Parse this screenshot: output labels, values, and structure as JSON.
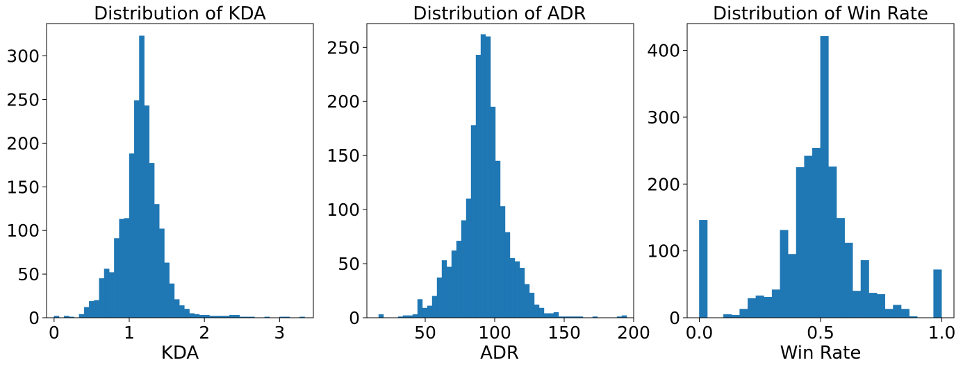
{
  "colors": {
    "bar": "#1f77b4",
    "background": "#ffffff",
    "axes": "#000000"
  },
  "chart_data": [
    {
      "type": "bar",
      "title": "Distribution of KDA",
      "xlabel": "KDA",
      "ylabel": "",
      "xlim": [
        -0.1,
        3.45
      ],
      "ylim": [
        0,
        337
      ],
      "grid": false,
      "xticks": [
        0,
        1,
        2,
        3
      ],
      "xtick_labels": [
        "0",
        "1",
        "2",
        "3"
      ],
      "yticks": [
        0,
        50,
        100,
        150,
        200,
        250,
        300
      ],
      "ytick_labels": [
        "0",
        "50",
        "100",
        "150",
        "200",
        "250",
        "300"
      ],
      "bin_start": 0.0,
      "bin_width": 0.0667,
      "values": [
        2,
        0,
        2,
        1,
        0,
        4,
        12,
        19,
        20,
        45,
        56,
        52,
        91,
        113,
        114,
        188,
        249,
        323,
        243,
        177,
        130,
        102,
        63,
        39,
        21,
        14,
        10,
        5,
        4,
        3,
        3,
        2,
        2,
        2,
        2,
        3,
        3,
        1,
        1,
        1,
        0,
        0,
        1,
        0,
        0,
        1,
        1,
        0,
        0,
        1
      ]
    },
    {
      "type": "bar",
      "title": "Distribution of ADR",
      "xlabel": "ADR",
      "ylabel": "",
      "xlim": [
        8,
        200
      ],
      "ylim": [
        0,
        272
      ],
      "grid": false,
      "xticks": [
        50,
        100,
        150,
        200
      ],
      "xtick_labels": [
        "50",
        "100",
        "150",
        "200"
      ],
      "yticks": [
        0,
        50,
        100,
        150,
        200,
        250
      ],
      "ytick_labels": [
        "0",
        "50",
        "100",
        "150",
        "200",
        "250"
      ],
      "bin_start": 16.5,
      "bin_width": 3.5,
      "values": [
        3,
        0,
        0,
        0,
        1,
        2,
        2,
        3,
        17,
        9,
        11,
        20,
        37,
        53,
        47,
        62,
        71,
        90,
        110,
        178,
        243,
        262,
        260,
        195,
        145,
        103,
        79,
        55,
        52,
        46,
        31,
        23,
        12,
        9,
        4,
        4,
        5,
        1,
        1,
        1,
        1,
        1,
        0,
        0,
        1,
        0,
        0,
        0,
        0,
        1,
        2
      ]
    },
    {
      "type": "bar",
      "title": "Distribution of Win Rate",
      "xlabel": "Win Rate",
      "ylabel": "",
      "xlim": [
        -0.05,
        1.05
      ],
      "ylim": [
        0,
        440
      ],
      "grid": false,
      "xticks": [
        0.0,
        0.5,
        1.0
      ],
      "xtick_labels": [
        "0.0",
        "0.5",
        "1.0"
      ],
      "yticks": [
        0,
        100,
        200,
        300,
        400
      ],
      "ytick_labels": [
        "0",
        "100",
        "200",
        "300",
        "400"
      ],
      "bin_start": 0.0,
      "bin_width": 0.0333,
      "values": [
        146,
        0,
        0,
        5,
        4,
        13,
        29,
        33,
        31,
        42,
        131,
        95,
        225,
        242,
        254,
        421,
        226,
        149,
        112,
        40,
        86,
        37,
        35,
        13,
        19,
        13,
        2,
        0,
        0,
        72
      ]
    }
  ]
}
